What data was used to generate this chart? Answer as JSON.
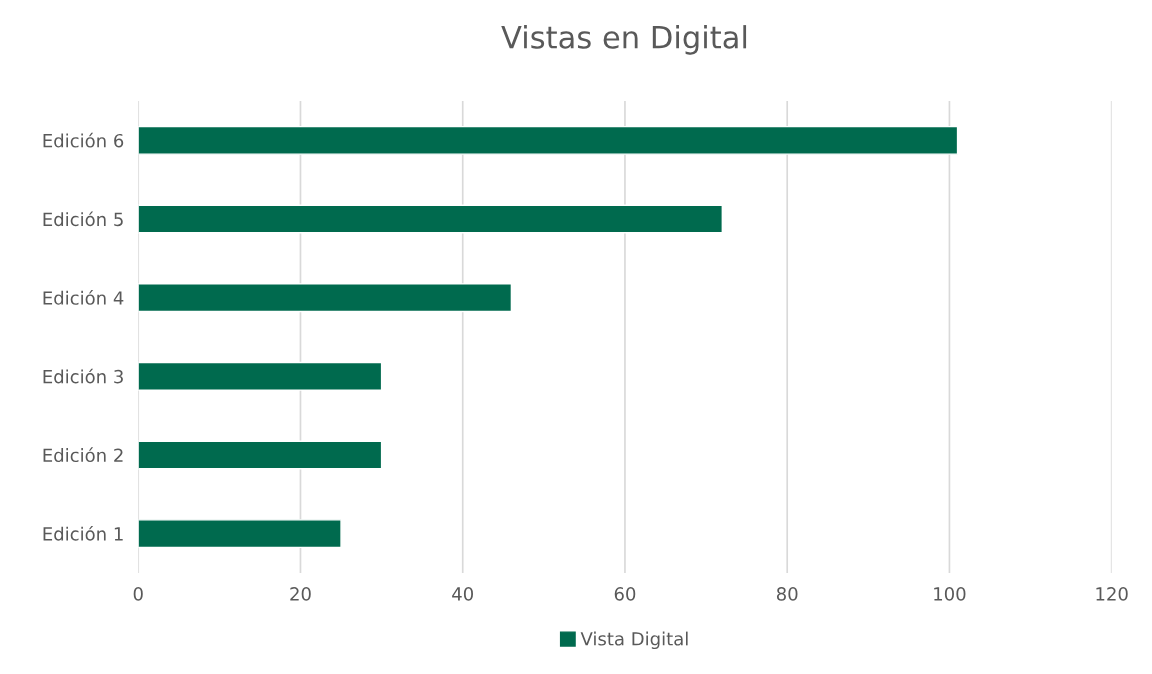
{
  "chart_data": {
    "type": "bar",
    "title": "Vistas en Digital",
    "orientation": "horizontal",
    "categories": [
      "Edición 6",
      "Edición 5",
      "Edición 4",
      "Edición 3",
      "Edición 2",
      "Edición 1"
    ],
    "series": [
      {
        "name": "Vista Digital",
        "color": "#006a4e",
        "values": [
          101,
          72,
          46,
          30,
          30,
          25
        ]
      }
    ],
    "xlim": [
      0,
      120
    ],
    "xticks": [
      0,
      20,
      40,
      60,
      80,
      100,
      120
    ],
    "grid": "x",
    "legend": "bottom"
  }
}
